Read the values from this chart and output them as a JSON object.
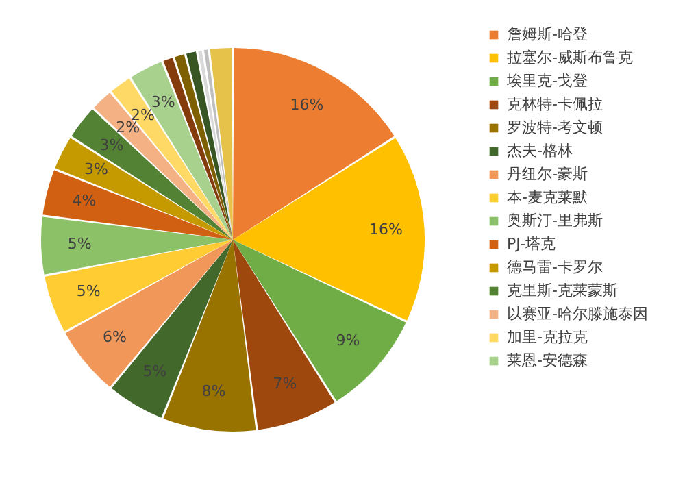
{
  "chart_data": {
    "type": "pie",
    "categories": [
      "詹姆斯-哈登",
      "拉塞尔-威斯布鲁克",
      "埃里克-戈登",
      "克林特-卡佩拉",
      "罗波特-考文顿",
      "杰夫-格林",
      "丹纽尔-豪斯",
      "本-麦克莱默",
      "奥斯汀-里弗斯",
      "PJ-塔克",
      "德马雷-卡罗尔",
      "克里斯-克莱蒙斯",
      "以赛亚-哈尔滕施泰因",
      "加里-克拉克",
      "莱恩-安德森",
      null,
      null,
      null,
      null,
      null,
      null
    ],
    "values": [
      16,
      16,
      9,
      7,
      8,
      5,
      6,
      5,
      5,
      4,
      3,
      3,
      2,
      2,
      3,
      1,
      1,
      1,
      0.5,
      0.5,
      2
    ],
    "value_labels": [
      "16%",
      "16%",
      "9%",
      "7%",
      "8%",
      "5%",
      "6%",
      "5%",
      "5%",
      "4%",
      "3%",
      "3%",
      "2%",
      "2%",
      "3%",
      null,
      null,
      null,
      null,
      null,
      null
    ],
    "colors": [
      "#ed7d31",
      "#ffc000",
      "#70ad47",
      "#9e480e",
      "#997300",
      "#43682b",
      "#f1975a",
      "#ffcd33",
      "#8cc168",
      "#d26012",
      "#c49a00",
      "#548235",
      "#f4b183",
      "#ffd966",
      "#a9d18e",
      "#843c0c",
      "#7f6000",
      "#375623",
      "#d9d9d9",
      "#bfbfbf",
      "#e6c24a"
    ],
    "legend": "right"
  }
}
